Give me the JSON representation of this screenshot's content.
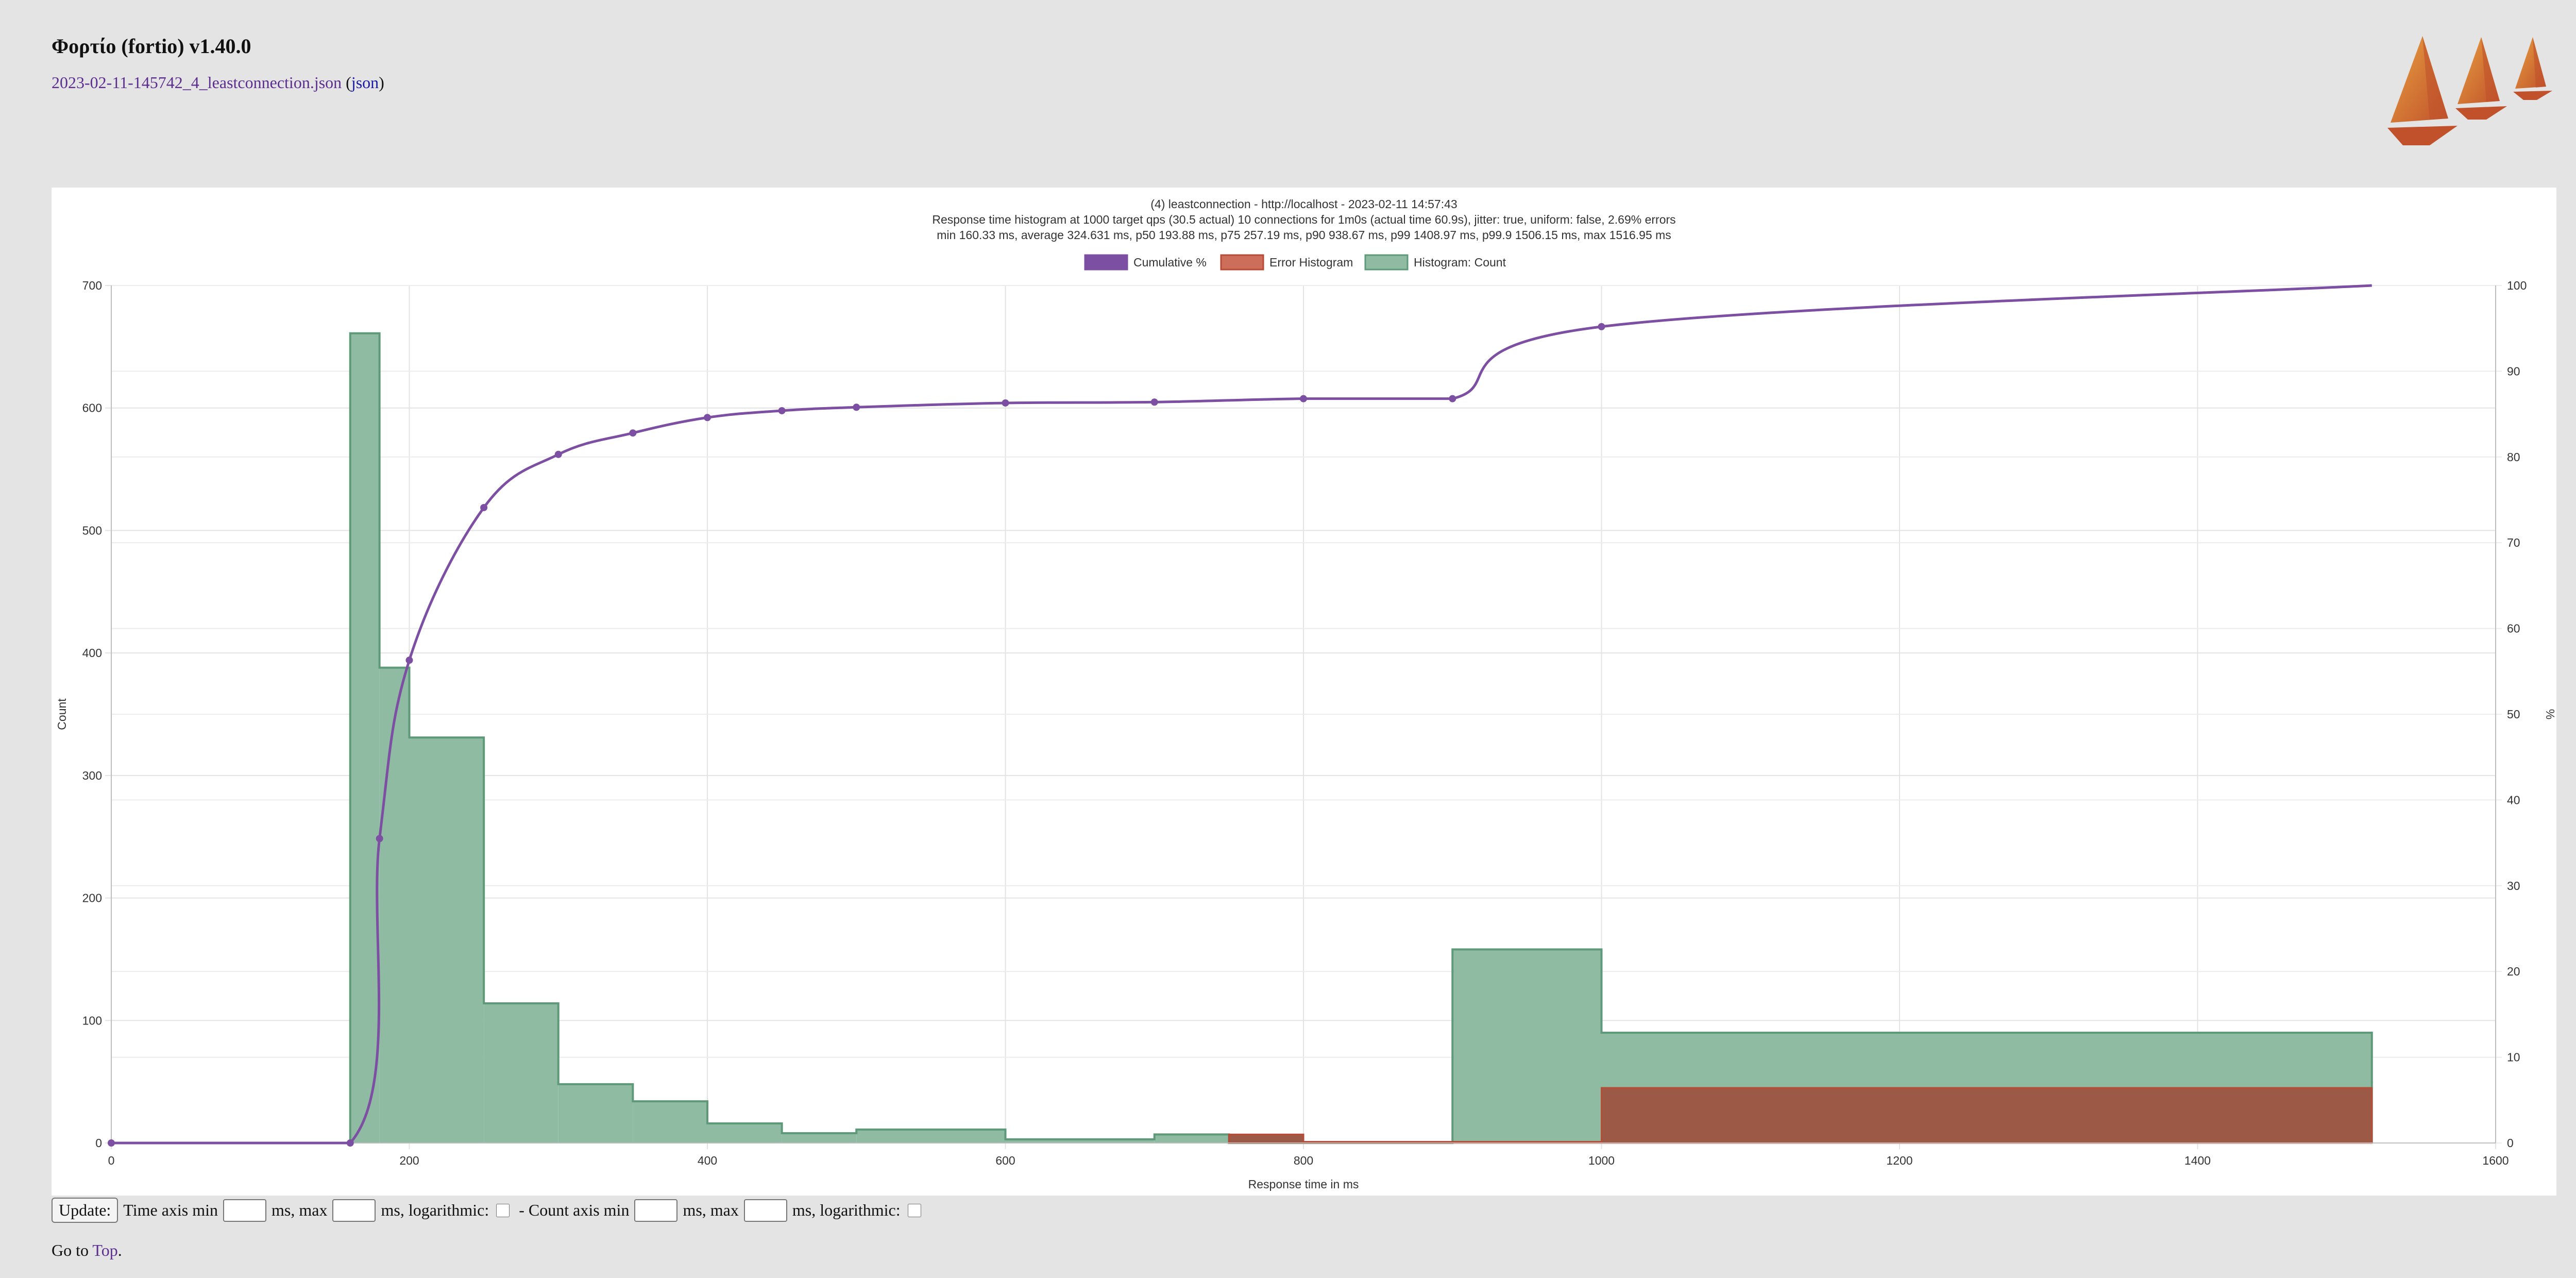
{
  "header": {
    "title": "Φορτίο (fortio) v1.40.0",
    "file_link": "2023-02-11-145742_4_leastconnection.json",
    "open_paren": " (",
    "json_link": "json",
    "close_paren": ")"
  },
  "logo": {
    "icon": "fortio-sailboats-logo",
    "colors": [
      "#c0512b",
      "#e8a040"
    ]
  },
  "controls": {
    "update_label": "Update:",
    "time_axis_min": "Time axis min",
    "ms_max_1": "ms, max",
    "ms_log_1": "ms, logarithmic:",
    "count_axis_min": "- Count axis min",
    "ms_max_2": "ms, max",
    "ms_log_2": "ms, logarithmic:",
    "time_min_value": "",
    "time_max_value": "",
    "count_min_value": "",
    "count_max_value": ""
  },
  "footer": {
    "goto": "Go to",
    "top_link": "Top",
    "period": "."
  },
  "colors": {
    "cumulative": "#7d4fa3",
    "error_fill": "#cd6e5a",
    "error_stroke": "#b94a36",
    "hist_fill": "#8fbba2",
    "hist_stroke": "#5e9a79",
    "link": "#5b2e8f"
  },
  "chart_data": {
    "type": "histogram",
    "title": [
      "(4) leastconnection - http://localhost - 2023-02-11 14:57:43",
      "Response time histogram at 1000 target qps (30.5 actual) 10 connections for 1m0s (actual time 60.9s), jitter: true, uniform: false, 2.69% errors",
      "min 160.33 ms, average 324.631 ms, p50 193.88 ms, p75 257.19 ms, p90 938.67 ms, p99 1408.97 ms, p99.9 1506.15 ms, max 1516.95 ms"
    ],
    "legend": [
      "Cumulative %",
      "Error Histogram",
      "Histogram: Count"
    ],
    "xlabel": "Response time in ms",
    "ylabel": "Count",
    "y2label": "%",
    "xlim": [
      0,
      1600
    ],
    "ylim": [
      0,
      700
    ],
    "y2lim": [
      0,
      100
    ],
    "x_ticks": [
      0,
      200,
      400,
      600,
      800,
      1000,
      1200,
      1400,
      1600
    ],
    "y_ticks": [
      0,
      100,
      200,
      300,
      400,
      500,
      600,
      700
    ],
    "y2_ticks": [
      0,
      10,
      20,
      30,
      40,
      50,
      60,
      70,
      80,
      90,
      100
    ],
    "grid": true,
    "histogram": [
      {
        "start": 0,
        "end": 160.33,
        "count": 0
      },
      {
        "start": 160.33,
        "end": 180,
        "count": 661
      },
      {
        "start": 180,
        "end": 200,
        "count": 388
      },
      {
        "start": 200,
        "end": 250,
        "count": 331
      },
      {
        "start": 250,
        "end": 300,
        "count": 114
      },
      {
        "start": 300,
        "end": 350,
        "count": 48
      },
      {
        "start": 350,
        "end": 400,
        "count": 34
      },
      {
        "start": 400,
        "end": 450,
        "count": 16
      },
      {
        "start": 450,
        "end": 500,
        "count": 8
      },
      {
        "start": 500,
        "end": 600,
        "count": 11
      },
      {
        "start": 600,
        "end": 700,
        "count": 3
      },
      {
        "start": 700,
        "end": 750,
        "count": 7
      },
      {
        "start": 750,
        "end": 800,
        "count": 0
      },
      {
        "start": 800,
        "end": 900,
        "count": 0
      },
      {
        "start": 900,
        "end": 1000,
        "count": 158
      },
      {
        "start": 1000,
        "end": 1516.95,
        "count": 90
      }
    ],
    "errors": [
      {
        "start": 750,
        "end": 800,
        "count": 7
      },
      {
        "start": 800,
        "end": 900,
        "count": 1
      },
      {
        "start": 900,
        "end": 1000,
        "count": 1
      },
      {
        "start": 1000,
        "end": 1516.95,
        "count": 45
      }
    ],
    "cumulative": [
      {
        "x": 0,
        "y": 0
      },
      {
        "x": 160.33,
        "y": 0
      },
      {
        "x": 180,
        "y": 35.5
      },
      {
        "x": 200,
        "y": 56.3
      },
      {
        "x": 250,
        "y": 74.1
      },
      {
        "x": 300,
        "y": 80.3
      },
      {
        "x": 350,
        "y": 82.8
      },
      {
        "x": 400,
        "y": 84.6
      },
      {
        "x": 450,
        "y": 85.4
      },
      {
        "x": 500,
        "y": 85.8
      },
      {
        "x": 600,
        "y": 86.3
      },
      {
        "x": 700,
        "y": 86.4
      },
      {
        "x": 800,
        "y": 86.8
      },
      {
        "x": 900,
        "y": 86.8
      },
      {
        "x": 1000,
        "y": 95.2
      },
      {
        "x": 1516.95,
        "y": 100
      }
    ]
  }
}
